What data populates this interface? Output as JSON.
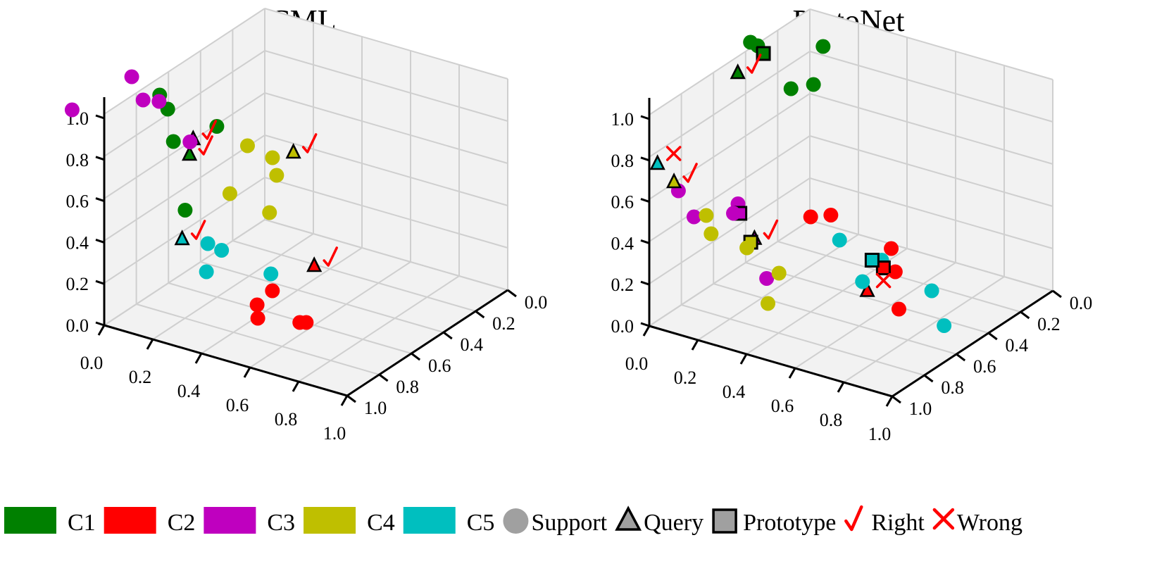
{
  "legend": {
    "items": [
      {
        "label": "C1",
        "kind": "class",
        "color": "#008000"
      },
      {
        "label": "C2",
        "kind": "class",
        "color": "#ff0000"
      },
      {
        "label": "C3",
        "kind": "class",
        "color": "#bf00bf"
      },
      {
        "label": "C4",
        "kind": "class",
        "color": "#bfbf00"
      },
      {
        "label": "C5",
        "kind": "class",
        "color": "#00bfbf"
      },
      {
        "label": "Support",
        "kind": "marker-circle",
        "color": "#a0a0a0"
      },
      {
        "label": "Query",
        "kind": "marker-triangle",
        "color": "#a0a0a0"
      },
      {
        "label": "Prototype",
        "kind": "marker-square",
        "color": "#a0a0a0"
      },
      {
        "label": "Right",
        "kind": "check",
        "color": "#ff0000"
      },
      {
        "label": "Wrong",
        "kind": "cross",
        "color": "#ff0000"
      }
    ]
  },
  "chart_data": [
    {
      "type": "scatter3d",
      "title": "CML",
      "ticks": [
        "0.0",
        "0.2",
        "0.4",
        "0.6",
        "0.8",
        "1.0"
      ],
      "xlim": [
        0,
        1
      ],
      "ylim": [
        0,
        1
      ],
      "zlim": [
        0,
        1
      ],
      "grid": true,
      "points": [
        {
          "cls": "C1",
          "m": "support",
          "x": 0.1,
          "y": 0.55,
          "z": 0.7
        },
        {
          "cls": "C1",
          "m": "support",
          "x": 0.03,
          "y": 0.3,
          "z": 0.95
        },
        {
          "cls": "C1",
          "m": "support",
          "x": 0.05,
          "y": 0.32,
          "z": 0.88
        },
        {
          "cls": "C1",
          "m": "support",
          "x": 0.3,
          "y": 0.05,
          "z": 0.62
        },
        {
          "cls": "C1",
          "m": "support",
          "x": 0.06,
          "y": 0.34,
          "z": 0.72
        },
        {
          "cls": "C1",
          "m": "query",
          "x": 0.1,
          "y": 0.38,
          "z": 0.65,
          "result": "right"
        },
        {
          "cls": "C2",
          "m": "support",
          "x": 0.5,
          "y": 0.2,
          "z": 0.1
        },
        {
          "cls": "C2",
          "m": "support",
          "x": 0.62,
          "y": 0.28,
          "z": 0.08
        },
        {
          "cls": "C2",
          "m": "support",
          "x": 0.55,
          "y": 0.12,
          "z": 0.22
        },
        {
          "cls": "C2",
          "m": "support",
          "x": 0.56,
          "y": 0.2,
          "z": 0.25
        },
        {
          "cls": "C2",
          "m": "support",
          "x": 0.62,
          "y": 0.32,
          "z": 0.06
        },
        {
          "cls": "C2",
          "m": "query",
          "x": 0.6,
          "y": 0.4,
          "z": 0.28,
          "result": "right"
        },
        {
          "cls": "C3",
          "m": "support",
          "x": 0.1,
          "y": 0.02,
          "z": 1.2
        },
        {
          "cls": "C3",
          "m": "support",
          "x": 0.16,
          "y": 0.0,
          "z": 1.12
        },
        {
          "cls": "C3",
          "m": "support",
          "x": 0.12,
          "y": 0.16,
          "z": 1.02
        },
        {
          "cls": "C3",
          "m": "support",
          "x": 0.32,
          "y": 0.05,
          "z": 0.95
        },
        {
          "cls": "C3",
          "m": "support",
          "x": 0.0,
          "y": -0.2,
          "z": 1.12
        },
        {
          "cls": "C3",
          "m": "query",
          "x": 0.3,
          "y": 0.1,
          "z": 0.93,
          "result": "right"
        },
        {
          "cls": "C4",
          "m": "support",
          "x": 0.18,
          "y": 0.62,
          "z": 0.6
        },
        {
          "cls": "C4",
          "m": "support",
          "x": 0.3,
          "y": 0.62,
          "z": 0.5
        },
        {
          "cls": "C4",
          "m": "support",
          "x": 0.23,
          "y": 0.7,
          "z": 0.52
        },
        {
          "cls": "C4",
          "m": "support",
          "x": 0.2,
          "y": 0.48,
          "z": 0.45
        },
        {
          "cls": "C4",
          "m": "support",
          "x": 0.35,
          "y": 0.5,
          "z": 0.4
        },
        {
          "cls": "C4",
          "m": "query",
          "x": 0.25,
          "y": 0.8,
          "z": 0.5,
          "result": "right"
        },
        {
          "cls": "C5",
          "m": "support",
          "x": 0.4,
          "y": 0.04,
          "z": 0.5
        },
        {
          "cls": "C5",
          "m": "support",
          "x": 0.45,
          "y": 0.05,
          "z": 0.48
        },
        {
          "cls": "C5",
          "m": "support",
          "x": 0.62,
          "y": 0.1,
          "z": 0.4
        },
        {
          "cls": "C5",
          "m": "support",
          "x": 0.5,
          "y": -0.12,
          "z": 0.48
        },
        {
          "cls": "C5",
          "m": "query",
          "x": 0.4,
          "y": -0.12,
          "z": 0.6,
          "result": "right"
        }
      ]
    },
    {
      "type": "scatter3d",
      "title": "ProtoNet",
      "ticks": [
        "0.0",
        "0.2",
        "0.4",
        "0.6",
        "0.8",
        "1.0"
      ],
      "xlim": [
        0,
        1
      ],
      "ylim": [
        0,
        1
      ],
      "zlim": [
        0,
        1
      ],
      "grid": true,
      "points": [
        {
          "cls": "C1",
          "m": "support",
          "x": 0.2,
          "y": 0.78,
          "z": 1.0
        },
        {
          "cls": "C1",
          "m": "support",
          "x": 0.02,
          "y": 0.6,
          "z": 1.05
        },
        {
          "cls": "C1",
          "m": "support",
          "x": 0.01,
          "y": 0.66,
          "z": 1.0
        },
        {
          "cls": "C1",
          "m": "support",
          "x": 0.2,
          "y": 0.58,
          "z": 0.9
        },
        {
          "cls": "C1",
          "m": "support",
          "x": 0.2,
          "y": 0.72,
          "z": 0.85
        },
        {
          "cls": "C1",
          "m": "prototype",
          "x": 0.06,
          "y": 0.62,
          "z": 1.0
        },
        {
          "cls": "C1",
          "m": "query",
          "x": 0.1,
          "y": 0.4,
          "z": 1.03,
          "result": "right"
        },
        {
          "cls": "C2",
          "m": "support",
          "x": 0.4,
          "y": 0.4,
          "z": 0.45
        },
        {
          "cls": "C2",
          "m": "support",
          "x": 0.45,
          "y": 0.45,
          "z": 0.45
        },
        {
          "cls": "C2",
          "m": "support",
          "x": 0.52,
          "y": 0.72,
          "z": 0.18
        },
        {
          "cls": "C2",
          "m": "support",
          "x": 0.55,
          "y": 0.7,
          "z": 0.09
        },
        {
          "cls": "C2",
          "m": "support",
          "x": 0.75,
          "y": 0.42,
          "z": 0.12
        },
        {
          "cls": "C2",
          "m": "prototype",
          "x": 0.6,
          "y": 0.55,
          "z": 0.2
        },
        {
          "cls": "C2",
          "m": "query",
          "x": 0.6,
          "y": 0.45,
          "z": 0.14,
          "result": "wrong"
        },
        {
          "cls": "C3",
          "m": "support",
          "x": 0.12,
          "y": 0.0,
          "z": 0.68
        },
        {
          "cls": "C3",
          "m": "support",
          "x": 0.32,
          "y": 0.04,
          "z": 0.62
        },
        {
          "cls": "C3",
          "m": "support",
          "x": 0.2,
          "y": 0.25,
          "z": 0.52
        },
        {
          "cls": "C3",
          "m": "support",
          "x": 0.25,
          "y": -0.1,
          "z": 0.65
        },
        {
          "cls": "C3",
          "m": "support",
          "x": 0.45,
          "y": 0.05,
          "z": 0.35
        },
        {
          "cls": "C3",
          "m": "prototype",
          "x": 0.32,
          "y": 0.08,
          "z": 0.6
        },
        {
          "cls": "C3",
          "m": "query",
          "x": 0.4,
          "y": 0.05,
          "z": 0.52,
          "result": "right"
        },
        {
          "cls": "C4",
          "m": "support",
          "x": 0.38,
          "y": -0.22,
          "z": 0.76
        },
        {
          "cls": "C4",
          "m": "support",
          "x": 0.4,
          "y": -0.22,
          "z": 0.68
        },
        {
          "cls": "C4",
          "m": "support",
          "x": 0.6,
          "y": -0.3,
          "z": 0.72
        },
        {
          "cls": "C4",
          "m": "support",
          "x": 0.7,
          "y": -0.32,
          "z": 0.5
        },
        {
          "cls": "C4",
          "m": "support",
          "x": 0.6,
          "y": -0.1,
          "z": 0.5
        },
        {
          "cls": "C4",
          "m": "prototype",
          "x": 0.55,
          "y": -0.2,
          "z": 0.68
        },
        {
          "cls": "C4",
          "m": "query",
          "x": 0.3,
          "y": -0.3,
          "z": 0.93,
          "result": "right"
        },
        {
          "cls": "C5",
          "m": "support",
          "x": 0.4,
          "y": 0.58,
          "z": 0.25
        },
        {
          "cls": "C5",
          "m": "support",
          "x": 0.58,
          "y": 0.57,
          "z": 0.22
        },
        {
          "cls": "C5",
          "m": "support",
          "x": 0.7,
          "y": 0.7,
          "z": 0.05
        },
        {
          "cls": "C5",
          "m": "support",
          "x": 0.85,
          "y": 0.55,
          "z": 0.01
        },
        {
          "cls": "C5",
          "m": "support",
          "x": 0.6,
          "y": 0.42,
          "z": 0.2
        },
        {
          "cls": "C5",
          "m": "prototype",
          "x": 0.58,
          "y": 0.51,
          "z": 0.25
        },
        {
          "cls": "C5",
          "m": "query",
          "x": 0.1,
          "y": -0.1,
          "z": 0.85,
          "result": "wrong"
        }
      ]
    }
  ]
}
